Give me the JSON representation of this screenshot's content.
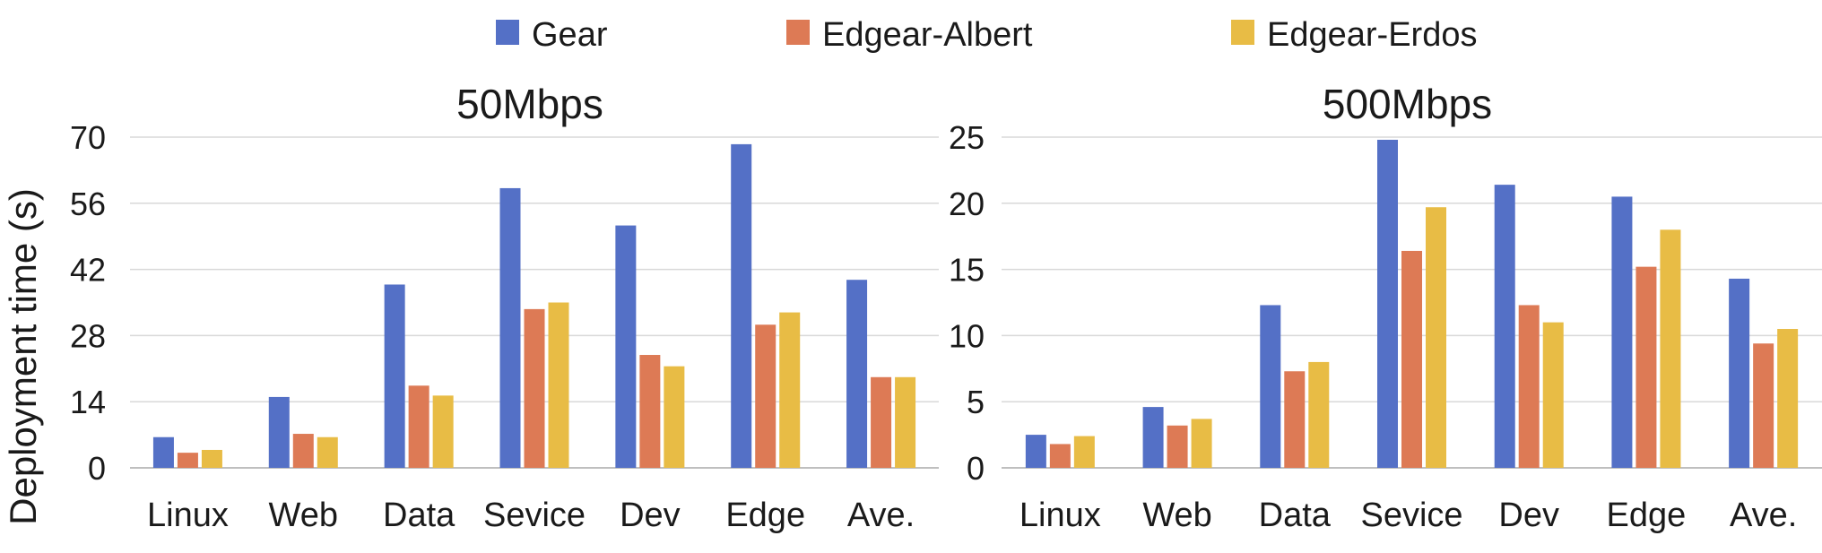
{
  "legend": {
    "items": [
      {
        "label": "Gear",
        "color": "#5470C6"
      },
      {
        "label": "Edgear-Albert",
        "color": "#DD7A55"
      },
      {
        "label": "Edgear-Erdos",
        "color": "#E8BC45"
      }
    ]
  },
  "ylabel": "Deployment time (s)",
  "chart_data": [
    {
      "type": "bar",
      "title": "50Mbps",
      "categories": [
        "Linux",
        "Web",
        "Data",
        "Sevice",
        "Dev",
        "Edge",
        "Ave."
      ],
      "ylim": [
        0,
        70
      ],
      "yticks": [
        "0",
        "14",
        "28",
        "42",
        "56",
        "70"
      ],
      "grid": true,
      "legend_position": "top",
      "series": [
        {
          "name": "Gear",
          "values": [
            6.5,
            15,
            38.8,
            59.2,
            51.3,
            68.5,
            39.8
          ]
        },
        {
          "name": "Edgear-Albert",
          "values": [
            3.2,
            7.2,
            17.4,
            33.6,
            23.9,
            30.3,
            19.2
          ]
        },
        {
          "name": "Edgear-Erdos",
          "values": [
            3.8,
            6.5,
            15.3,
            35,
            21.5,
            32.9,
            19.2
          ]
        }
      ]
    },
    {
      "type": "bar",
      "title": "500Mbps",
      "categories": [
        "Linux",
        "Web",
        "Data",
        "Sevice",
        "Dev",
        "Edge",
        "Ave."
      ],
      "ylim": [
        0,
        25
      ],
      "yticks": [
        "0",
        "5",
        "10",
        "15",
        "20",
        "25"
      ],
      "grid": true,
      "legend_position": "top",
      "series": [
        {
          "name": "Gear",
          "values": [
            2.5,
            4.6,
            12.3,
            24.8,
            21.4,
            20.5,
            14.3
          ]
        },
        {
          "name": "Edgear-Albert",
          "values": [
            1.8,
            3.2,
            7.3,
            16.4,
            12.3,
            15.2,
            9.4
          ]
        },
        {
          "name": "Edgear-Erdos",
          "values": [
            2.4,
            3.7,
            8,
            19.7,
            11,
            18,
            10.5
          ]
        }
      ]
    }
  ]
}
